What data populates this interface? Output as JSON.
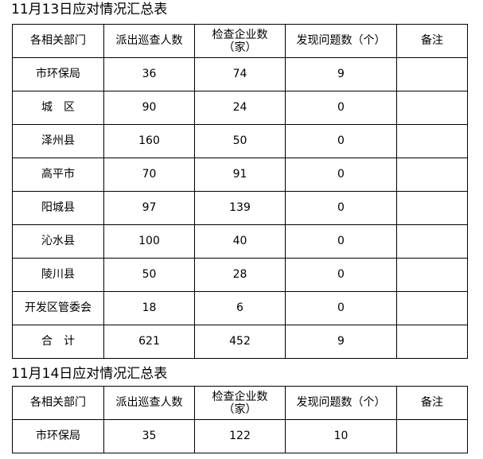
{
  "tables": [
    {
      "title": "11月13日应对情况汇总表",
      "headers": [
        "各相关部门",
        "派出巡查人数",
        "检查企业数",
        "（家）",
        "发现问题数（个）",
        "备注"
      ],
      "rows": [
        [
          "市环保局",
          "36",
          "74",
          "9",
          ""
        ],
        [
          "城　区",
          "90",
          "24",
          "0",
          ""
        ],
        [
          "泽州县",
          "160",
          "50",
          "0",
          ""
        ],
        [
          "高平市",
          "70",
          "91",
          "0",
          ""
        ],
        [
          "阳城县",
          "97",
          "139",
          "0",
          ""
        ],
        [
          "沁水县",
          "100",
          "40",
          "0",
          ""
        ],
        [
          "陵川县",
          "50",
          "28",
          "0",
          ""
        ],
        [
          "开发区管委会",
          "18",
          "6",
          "0",
          ""
        ],
        [
          "合　计",
          "621",
          "452",
          "9",
          ""
        ]
      ]
    },
    {
      "title": "11月14日应对情况汇总表",
      "headers": [
        "各相关部门",
        "派出巡查人数",
        "检查企业数",
        "（家）",
        "发现问题数（个）",
        "备注"
      ],
      "rows": [
        [
          "市环保局",
          "35",
          "122",
          "10",
          ""
        ]
      ]
    }
  ]
}
